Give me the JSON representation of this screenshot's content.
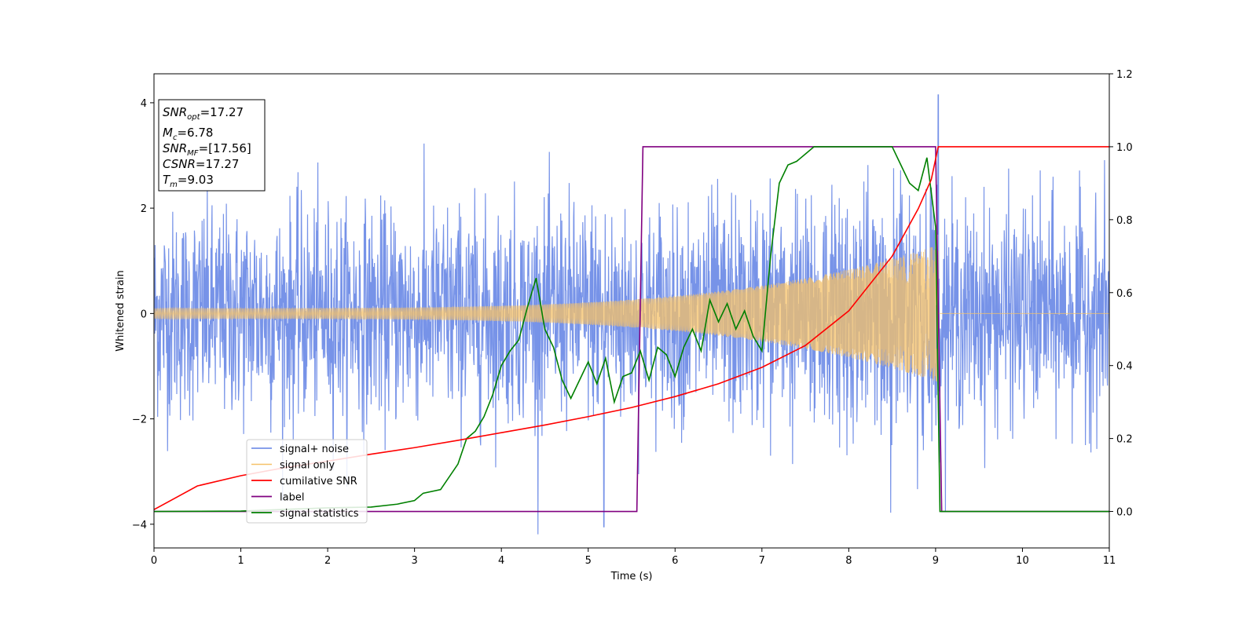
{
  "chart_data": {
    "type": "line",
    "xlabel": "Time (s)",
    "ylabel_left": "Whitened strain",
    "xlim": [
      0,
      11
    ],
    "ylim_left": [
      -4.45,
      4.55
    ],
    "ylim_right": [
      -0.1,
      1.2
    ],
    "xticks": [
      "0",
      "1",
      "2",
      "3",
      "4",
      "5",
      "6",
      "7",
      "8",
      "9",
      "10",
      "11"
    ],
    "yticks_left": [
      "−4",
      "−2",
      "0",
      "2",
      "4"
    ],
    "yticks_right": [
      "0.0",
      "0.2",
      "0.4",
      "0.6",
      "0.8",
      "1.0",
      "1.2"
    ],
    "grid": false,
    "legend_position": "lower-left",
    "annotation_box": {
      "position": "top-left",
      "lines": [
        {
          "name": "SNR",
          "sub": "opt",
          "value": "=17.27"
        },
        {
          "name": "M",
          "sub": "c",
          "value": "=6.78"
        },
        {
          "name": "SNR",
          "sub": "MF",
          "value": "=[17.56]"
        },
        {
          "name": "CSNR",
          "sub": "",
          "value": "=17.27"
        },
        {
          "name": "T",
          "sub": "m",
          "value": "=9.03"
        }
      ]
    },
    "series": [
      {
        "name": "signal+ noise",
        "axis": "left",
        "color": "#7793e8",
        "description_values": {
          "noise_std": 1.0,
          "signal_peak_time": 9.03
        },
        "kind": "noise_plus_chirp"
      },
      {
        "name": "signal only",
        "axis": "left",
        "color": "#f5c168",
        "kind": "chirp",
        "envelope": {
          "start": 0.1,
          "end": 1.3,
          "merger_time": 9.03
        }
      },
      {
        "name": "cumilative SNR",
        "axis": "right",
        "color": "#ff0000",
        "x": [
          0,
          0.5,
          1,
          1.5,
          2,
          2.5,
          3,
          3.5,
          4,
          4.5,
          5,
          5.5,
          6,
          6.5,
          7,
          7.5,
          8,
          8.5,
          8.8,
          8.95,
          9.03,
          11
        ],
        "values": [
          0.005,
          0.07,
          0.098,
          0.12,
          0.138,
          0.157,
          0.175,
          0.195,
          0.216,
          0.237,
          0.26,
          0.285,
          0.315,
          0.35,
          0.395,
          0.455,
          0.55,
          0.7,
          0.83,
          0.91,
          1.0,
          1.0
        ]
      },
      {
        "name": "label",
        "axis": "right",
        "color": "#800080",
        "x": [
          0,
          5.56,
          5.63,
          9.0,
          9.07,
          11
        ],
        "values": [
          0,
          0,
          1,
          1,
          0,
          0
        ]
      },
      {
        "name": "signal statistics",
        "axis": "right",
        "color": "#008000",
        "x": [
          0,
          1,
          2,
          2.5,
          2.8,
          3.0,
          3.1,
          3.3,
          3.5,
          3.6,
          3.7,
          3.8,
          3.9,
          4.0,
          4.1,
          4.2,
          4.3,
          4.4,
          4.5,
          4.6,
          4.7,
          4.8,
          4.9,
          5.0,
          5.1,
          5.2,
          5.3,
          5.4,
          5.5,
          5.6,
          5.7,
          5.8,
          5.9,
          6.0,
          6.1,
          6.2,
          6.3,
          6.4,
          6.5,
          6.6,
          6.7,
          6.8,
          6.9,
          7.0,
          7.1,
          7.2,
          7.3,
          7.4,
          7.5,
          7.6,
          7.7,
          8.0,
          8.5,
          8.6,
          8.7,
          8.8,
          8.9,
          9.0,
          9.05,
          11
        ],
        "values": [
          0,
          0.001,
          0.01,
          0.012,
          0.02,
          0.03,
          0.05,
          0.06,
          0.13,
          0.2,
          0.22,
          0.26,
          0.32,
          0.4,
          0.44,
          0.47,
          0.56,
          0.64,
          0.5,
          0.45,
          0.36,
          0.31,
          0.36,
          0.41,
          0.35,
          0.42,
          0.3,
          0.37,
          0.38,
          0.44,
          0.36,
          0.45,
          0.43,
          0.37,
          0.45,
          0.5,
          0.44,
          0.58,
          0.52,
          0.57,
          0.5,
          0.55,
          0.48,
          0.44,
          0.7,
          0.9,
          0.95,
          0.96,
          0.98,
          1.0,
          1.0,
          1.0,
          1.0,
          0.95,
          0.9,
          0.88,
          0.97,
          0.78,
          0.0,
          0.0
        ]
      }
    ]
  }
}
